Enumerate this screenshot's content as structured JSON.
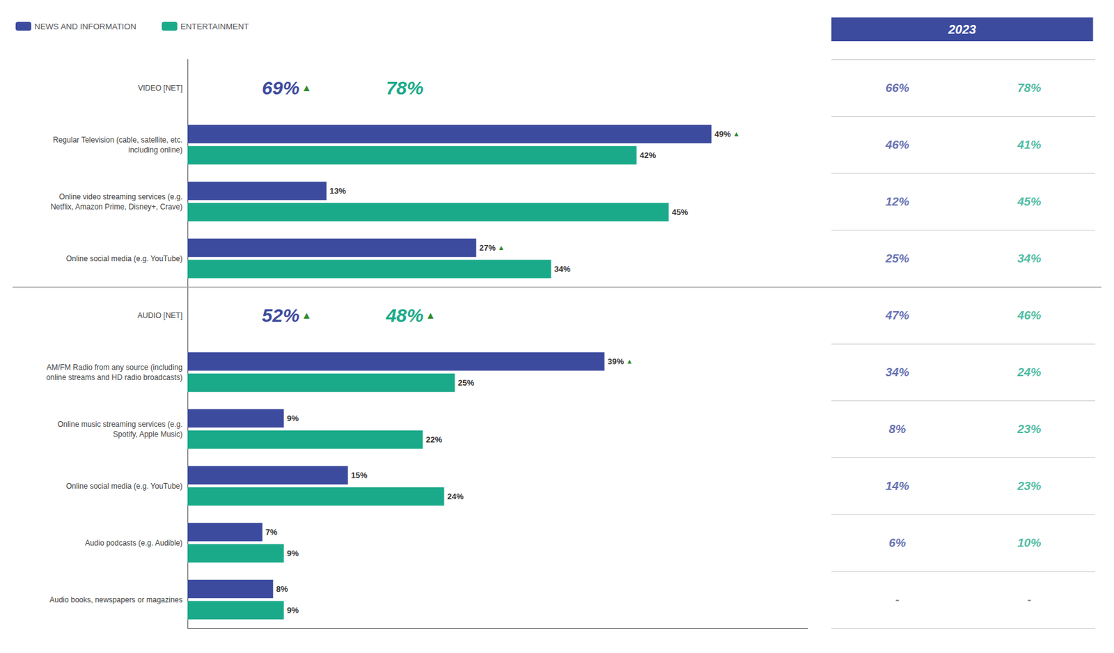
{
  "chart_data": [
    {
      "type": "bar",
      "orientation": "horizontal",
      "categories": [
        "VIDEO [NET]",
        "Regular Television (cable, satellite, etc.\nincluding online)",
        "Online video streaming services (e.g.\nNetflix, Amazon Prime, Disney+, Crave)",
        "Online social media (e.g. YouTube)",
        "AUDIO [NET]",
        "AM/FM Radio from any source (including\nonline streams and HD radio broadcasts)",
        "Online music streaming services (e.g.\nSpotify, Apple Music)",
        "Online social media (e.g. YouTube)",
        "Audio podcasts (e.g. Audible)",
        "Audio books, newspapers or magazines"
      ],
      "series": [
        {
          "name": "NEWS AND INFORMATION",
          "color": "#3d4b9e",
          "values": [
            null,
            49,
            13,
            27,
            null,
            39,
            9,
            15,
            7,
            8
          ],
          "value_labels": [
            null,
            "49% ▲",
            "13%",
            "27% ▲",
            null,
            "39% ▲",
            "9%",
            "15%",
            "7%",
            "8%"
          ]
        },
        {
          "name": "ENTERTAINMENT",
          "color": "#1aaa8a",
          "values": [
            null,
            42,
            45,
            34,
            null,
            25,
            22,
            24,
            9,
            9
          ],
          "value_labels": [
            null,
            "42%",
            "45%",
            "34%",
            null,
            "25%",
            "22%",
            "24%",
            "9%",
            "9%"
          ]
        }
      ],
      "annotations": [
        {
          "text": "69% ▲",
          "category": "VIDEO [NET]",
          "series": "NEWS AND INFORMATION"
        },
        {
          "text": "78%",
          "category": "VIDEO [NET]",
          "series": "ENTERTAINMENT"
        },
        {
          "text": "52% ▲",
          "category": "AUDIO [NET]",
          "series": "NEWS AND INFORMATION"
        },
        {
          "text": "48% ▲",
          "category": "AUDIO [NET]",
          "series": "ENTERTAINMENT"
        }
      ],
      "xlim": [
        0,
        58
      ],
      "data_labels": true,
      "tick_labels": "y",
      "grid": false,
      "legend": "top-left",
      "color": "#2e8b2e"
    },
    {
      "type": "table",
      "title": "2023",
      "color": "#3d4b9e",
      "categories": [
        "VIDEO [NET]",
        "Regular Television (cable, satellite, etc.\nincluding online)",
        "Online video streaming services (e.g.\nNetflix, Amazon Prime, Disney+, Crave)",
        "Online social media (e.g. YouTube)",
        "AUDIO [NET]",
        "AM/FM Radio from any source (including\nonline streams and HD radio broadcasts)",
        "Online music streaming services (e.g.\nSpotify, Apple Music)",
        "Online social media (e.g. YouTube)",
        "Audio podcasts (e.g. Audible)",
        "Audio books, newspapers or magazines"
      ],
      "series": [
        {
          "name": "NEWS AND INFORMATION",
          "color": "#3d4b9e",
          "values": [
            66,
            46,
            12,
            25,
            47,
            34,
            8,
            14,
            6,
            null
          ],
          "value_labels": [
            "66%",
            "46%",
            "12%",
            "25%",
            "47%",
            "34%",
            "8%",
            "14%",
            "6%",
            "-"
          ]
        },
        {
          "name": "ENTERTAINMENT",
          "color": "#1aaa8a",
          "values": [
            78,
            41,
            45,
            34,
            46,
            24,
            23,
            23,
            10,
            null
          ],
          "value_labels": [
            "78%",
            "41%",
            "45%",
            "34%",
            "46%",
            "24%",
            "23%",
            "23%",
            "10%",
            "-"
          ]
        }
      ],
      "data_labels": true,
      "tick_labels": false
    }
  ]
}
